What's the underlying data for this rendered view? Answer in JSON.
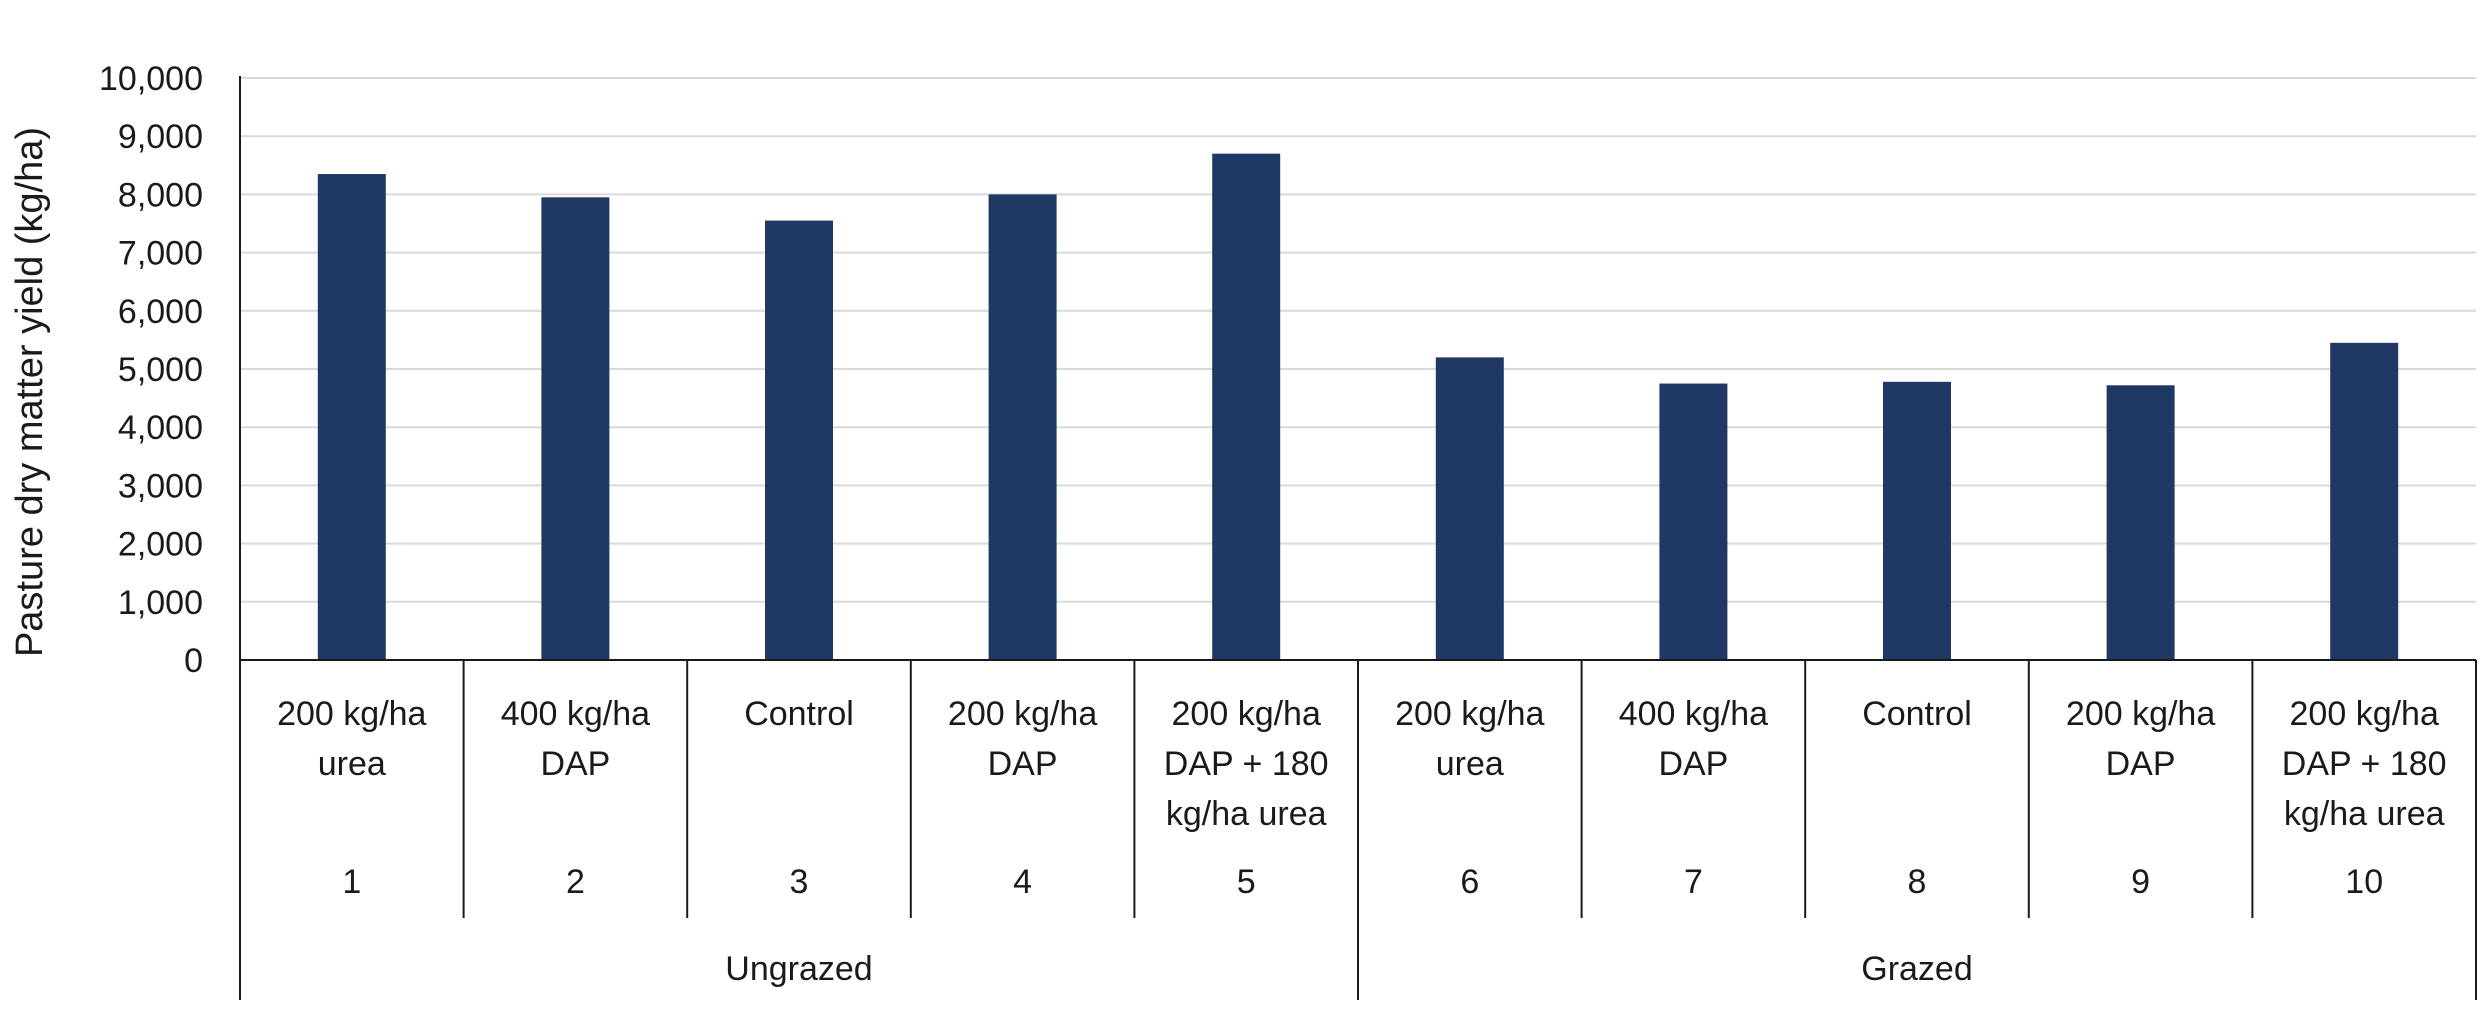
{
  "chart_data": {
    "type": "bar",
    "title": "",
    "xlabel": "",
    "ylabel": "Pasture dry matter yield (kg/ha)",
    "ylim": [
      0,
      10000
    ],
    "yticks": [
      0,
      1000,
      2000,
      3000,
      4000,
      5000,
      6000,
      7000,
      8000,
      9000,
      10000
    ],
    "ytick_labels": [
      "0",
      "1,000",
      "2,000",
      "3,000",
      "4,000",
      "5,000",
      "6,000",
      "7,000",
      "8,000",
      "9,000",
      "10,000"
    ],
    "grid": true,
    "bar_color": "#203864",
    "categories": [
      {
        "treatment": [
          "200 kg/ha",
          "urea"
        ],
        "number": "1",
        "group": "Ungrazed"
      },
      {
        "treatment": [
          "400 kg/ha",
          "DAP"
        ],
        "number": "2",
        "group": "Ungrazed"
      },
      {
        "treatment": [
          "Control"
        ],
        "number": "3",
        "group": "Ungrazed"
      },
      {
        "treatment": [
          "200 kg/ha",
          "DAP"
        ],
        "number": "4",
        "group": "Ungrazed"
      },
      {
        "treatment": [
          "200 kg/ha",
          "DAP + 180",
          "kg/ha urea"
        ],
        "number": "5",
        "group": "Ungrazed"
      },
      {
        "treatment": [
          "200 kg/ha",
          "urea"
        ],
        "number": "6",
        "group": "Grazed"
      },
      {
        "treatment": [
          "400 kg/ha",
          "DAP"
        ],
        "number": "7",
        "group": "Grazed"
      },
      {
        "treatment": [
          "Control"
        ],
        "number": "8",
        "group": "Grazed"
      },
      {
        "treatment": [
          "200 kg/ha",
          "DAP"
        ],
        "number": "9",
        "group": "Grazed"
      },
      {
        "treatment": [
          "200 kg/ha",
          "DAP + 180",
          "kg/ha urea"
        ],
        "number": "10",
        "group": "Grazed"
      }
    ],
    "groups": [
      {
        "label": "Ungrazed",
        "span": 5
      },
      {
        "label": "Grazed",
        "span": 5
      }
    ],
    "series": [
      {
        "name": "Pasture dry matter yield",
        "values": [
          8350,
          7950,
          7550,
          8000,
          8700,
          5200,
          4750,
          4780,
          4720,
          5450
        ]
      }
    ]
  }
}
